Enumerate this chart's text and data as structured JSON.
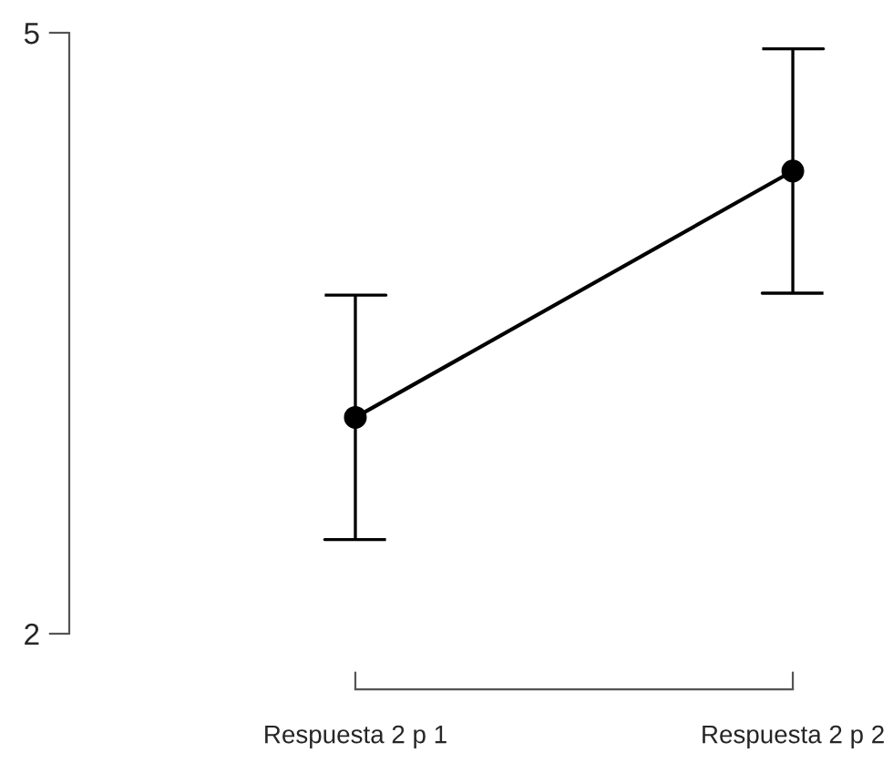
{
  "chart_data": {
    "type": "line",
    "categories": [
      "Respuesta 2 p 1",
      "Respuesta 2 p 2"
    ],
    "values": [
      3.08,
      4.31
    ],
    "errors": [
      [
        2.47,
        3.69
      ],
      [
        3.7,
        4.92
      ]
    ],
    "color": "#000000",
    "ylim": [
      2,
      5
    ],
    "yticks": [
      2,
      5
    ],
    "marker": "circle",
    "line_style": "solid",
    "grid": false,
    "legend": false
  }
}
